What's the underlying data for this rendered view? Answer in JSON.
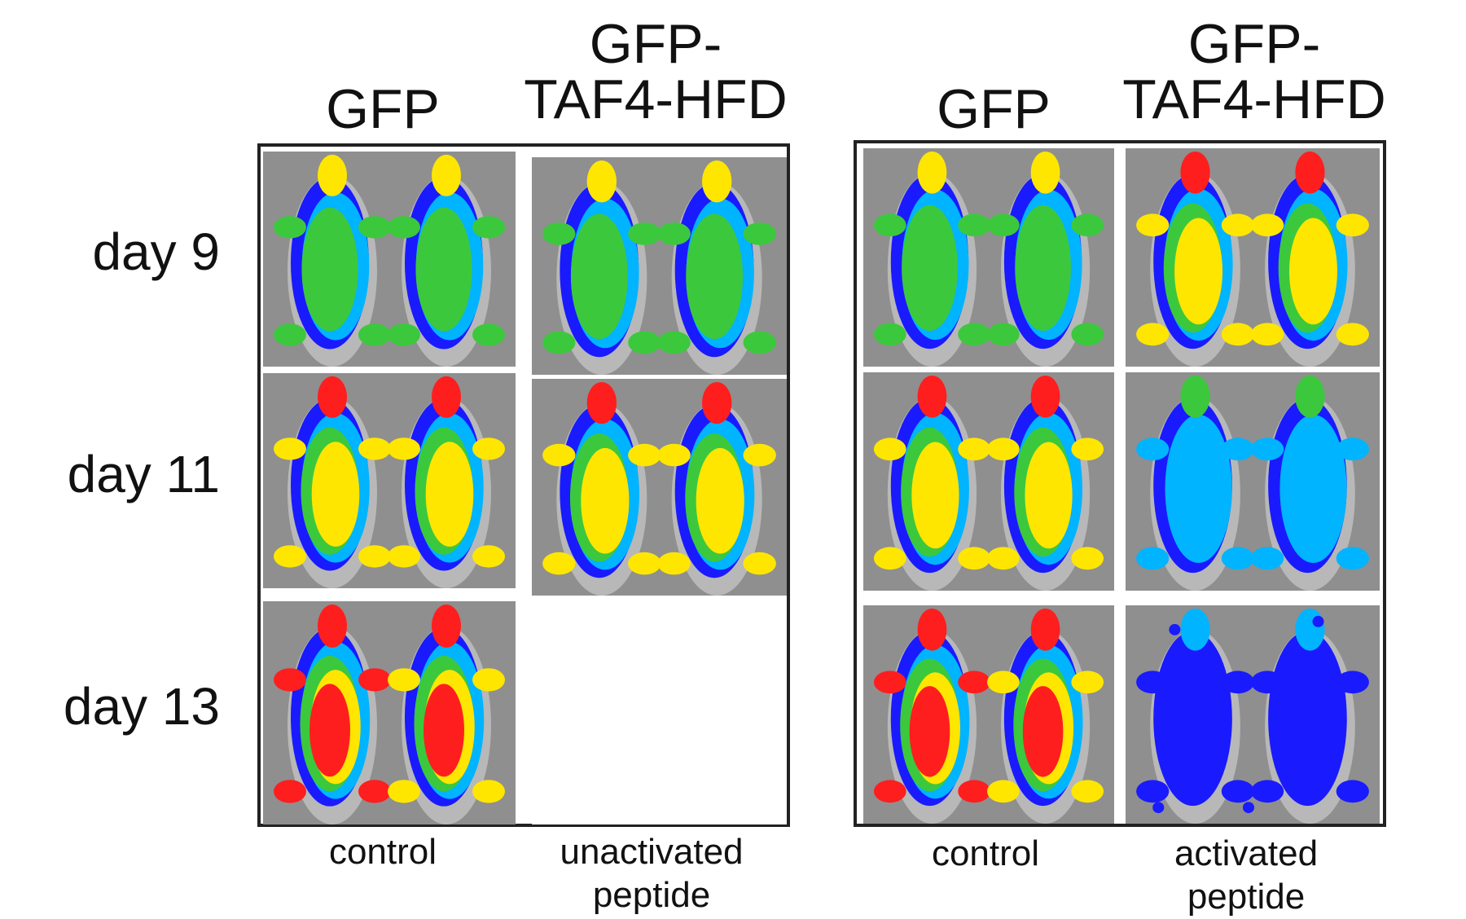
{
  "left_group": {
    "headers": [
      "GFP",
      "GFP-\nTAF4-HFD"
    ],
    "footers": [
      "control",
      "unactivated\npeptide"
    ]
  },
  "right_group": {
    "headers": [
      "GFP",
      "GFP-\nTAF4-HFD"
    ],
    "footers": [
      "control",
      "activated\npeptide"
    ]
  },
  "rows": [
    "day 9",
    "day 11",
    "day 13"
  ],
  "intensity_colors": [
    "#1a1aff",
    "#00b4ff",
    "#3cc83c",
    "#ffe600",
    "#ff1e1e"
  ],
  "panels": [
    {
      "group": "left",
      "column": 0,
      "row": 0,
      "signal": "moderate"
    },
    {
      "group": "left",
      "column": 1,
      "row": 0,
      "signal": "moderate"
    },
    {
      "group": "left",
      "column": 0,
      "row": 1,
      "signal": "high"
    },
    {
      "group": "left",
      "column": 1,
      "row": 1,
      "signal": "high"
    },
    {
      "group": "left",
      "column": 0,
      "row": 2,
      "signal": "very-high"
    },
    {
      "group": "left",
      "column": 1,
      "row": 2,
      "signal": "none"
    },
    {
      "group": "right",
      "column": 0,
      "row": 0,
      "signal": "moderate"
    },
    {
      "group": "right",
      "column": 1,
      "row": 0,
      "signal": "high"
    },
    {
      "group": "right",
      "column": 0,
      "row": 1,
      "signal": "high"
    },
    {
      "group": "right",
      "column": 1,
      "row": 1,
      "signal": "low"
    },
    {
      "group": "right",
      "column": 0,
      "row": 2,
      "signal": "very-high"
    },
    {
      "group": "right",
      "column": 1,
      "row": 2,
      "signal": "very-low"
    }
  ]
}
